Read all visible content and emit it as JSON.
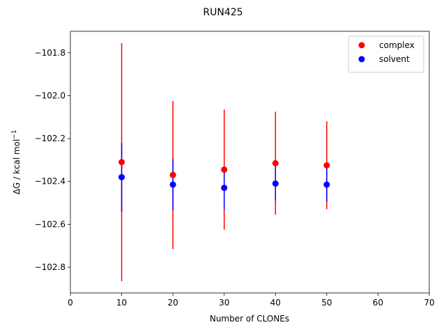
{
  "chart_data": {
    "type": "scatter",
    "title": "RUN425",
    "xlabel": "Number of CLONEs",
    "ylabel": "ΔG / kcal mol",
    "ylabel_superscript": "−1",
    "xlim": [
      0,
      70
    ],
    "ylim": [
      -102.92,
      -101.7
    ],
    "xticks": [
      0,
      10,
      20,
      30,
      40,
      50,
      60,
      70
    ],
    "xtick_labels": [
      "0",
      "10",
      "20",
      "30",
      "40",
      "50",
      "60",
      "70"
    ],
    "yticks": [
      -102.8,
      -102.6,
      -102.4,
      -102.2,
      -102.0,
      -101.8
    ],
    "ytick_labels": [
      "−102.8",
      "−102.6",
      "−102.4",
      "−102.2",
      "−102.0",
      "−101.8"
    ],
    "grid": false,
    "legend_position": "top-right",
    "series": [
      {
        "name": "complex",
        "color": "#ff0000",
        "x": [
          10,
          20,
          30,
          40,
          50
        ],
        "y": [
          -102.31,
          -102.37,
          -102.345,
          -102.315,
          -102.325
        ],
        "yerr": [
          0.555,
          0.345,
          0.28,
          0.24,
          0.205
        ]
      },
      {
        "name": "solvent",
        "color": "#0000ff",
        "x": [
          10,
          20,
          30,
          40,
          50
        ],
        "y": [
          -102.38,
          -102.415,
          -102.43,
          -102.41,
          -102.415
        ],
        "yerr": [
          0.16,
          0.12,
          0.1,
          0.08,
          0.08
        ]
      }
    ]
  }
}
